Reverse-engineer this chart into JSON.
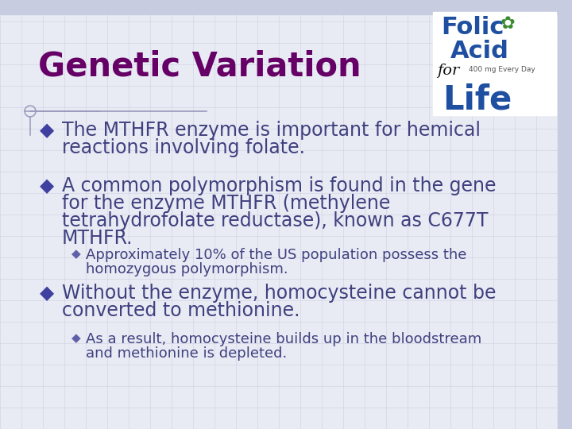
{
  "title": "Genetic Variation",
  "title_color": "#660066",
  "title_fontsize": 30,
  "bg_color": "#E8EBF3",
  "grid_color": "#C5C9DC",
  "bullet_color": "#4040A0",
  "bullet_char": "◆",
  "sub_bullet_char": "◆",
  "sub_bullet_color": "#6060A8",
  "main_text_color": "#404080",
  "sub_text_color": "#404080",
  "bullet1_line1": "The MTHFR enzyme is important for hemical",
  "bullet1_line2": "reactions involving folate.",
  "bullet2_line1": "A common polymorphism is found in the gene",
  "bullet2_line2": "for the enzyme MTHFR (methylene",
  "bullet2_line3": "tetrahydrofolate reductase), known as C677T",
  "bullet2_line4": "MTHFR.",
  "sub2_line1": "Approximately 10% of the US population possess the",
  "sub2_line2": "homozygous polymorphism.",
  "bullet3_line1": "Without the enzyme, homocysteine cannot be",
  "bullet3_line2": "converted to methionine.",
  "sub3_line1": "As a result, homocysteine builds up in the bloodstream",
  "sub3_line2": "and methionine is depleted.",
  "main_fontsize": 17,
  "sub_fontsize": 13,
  "line_color": "#9999BB",
  "top_stripe_color": "#C8CCE0",
  "right_stripe_color": "#C8CCE0",
  "crosshair_color": "#9999BB"
}
